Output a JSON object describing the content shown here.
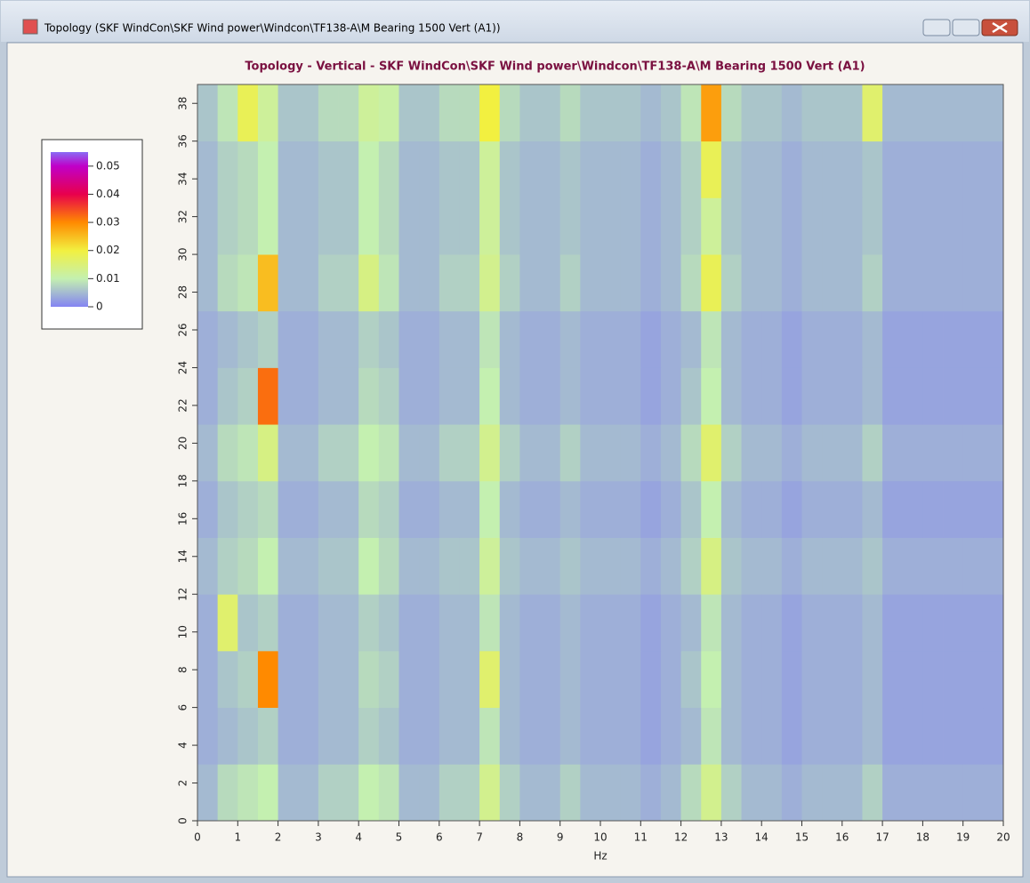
{
  "window": {
    "title": "Topology (SKF WindCon\\SKF Wind power\\Windcon\\TF138-A\\M Bearing 1500 Vert (A1))"
  },
  "chart_data": {
    "type": "heatmap",
    "title": "Topology - Vertical - SKF WindCon\\SKF Wind power\\Windcon\\TF138-A\\M Bearing 1500 Vert (A1)",
    "x_label": "Hz",
    "xlim": [
      0,
      20
    ],
    "ylim": [
      0,
      39
    ],
    "xticks": [
      0,
      1,
      2,
      3,
      4,
      5,
      6,
      7,
      8,
      9,
      10,
      11,
      12,
      13,
      14,
      15,
      16,
      17,
      18,
      19,
      20
    ],
    "yticks": [
      0,
      2,
      4,
      6,
      8,
      10,
      12,
      14,
      16,
      18,
      20,
      22,
      24,
      26,
      28,
      30,
      32,
      34,
      36,
      38
    ],
    "x": [
      0,
      0.5,
      1,
      1.5,
      2,
      2.5,
      3,
      3.5,
      4,
      4.5,
      5,
      5.5,
      6,
      6.5,
      7,
      7.5,
      8,
      8.5,
      9,
      9.5,
      10,
      10.5,
      11,
      11.5,
      12,
      12.5,
      13,
      13.5,
      14,
      14.5,
      15,
      15.5,
      16,
      16.5,
      17,
      17.5,
      18,
      18.5,
      19,
      19.5,
      20
    ],
    "y": [
      0,
      3,
      6,
      9,
      12,
      15,
      18,
      21,
      24,
      27,
      30,
      33,
      36,
      39
    ],
    "clim": [
      0,
      0.055
    ],
    "colorbar_ticks": [
      0,
      0.01,
      0.02,
      0.03,
      0.04,
      0.05
    ],
    "colorscale": [
      [
        0,
        "#8484f2"
      ],
      [
        0.01,
        "#c4f0b0"
      ],
      [
        0.02,
        "#f2f040"
      ],
      [
        0.03,
        "#ff8a00"
      ],
      [
        0.04,
        "#e8004c"
      ],
      [
        0.05,
        "#c000c8"
      ],
      [
        0.055,
        "#8a6cf4"
      ]
    ],
    "z": [
      [
        0.005,
        0.008,
        0.009,
        0.01,
        0.005,
        0.005,
        0.007,
        0.007,
        0.01,
        0.009,
        0.005,
        0.005,
        0.007,
        0.007,
        0.013,
        0.007,
        0.005,
        0.005,
        0.007,
        0.005,
        0.005,
        0.005,
        0.004,
        0.005,
        0.008,
        0.013,
        0.007,
        0.005,
        0.005,
        0.004,
        0.005,
        0.005,
        0.005,
        0.007,
        0.004,
        0.004,
        0.004,
        0.004,
        0.004,
        0.004
      ],
      [
        0.004,
        0.005,
        0.006,
        0.007,
        0.004,
        0.004,
        0.005,
        0.005,
        0.007,
        0.006,
        0.004,
        0.004,
        0.005,
        0.005,
        0.009,
        0.005,
        0.004,
        0.004,
        0.005,
        0.004,
        0.004,
        0.004,
        0.003,
        0.004,
        0.005,
        0.009,
        0.005,
        0.004,
        0.004,
        0.003,
        0.004,
        0.004,
        0.004,
        0.005,
        0.003,
        0.003,
        0.003,
        0.003,
        0.003,
        0.003
      ],
      [
        0.004,
        0.006,
        0.007,
        0.03,
        0.004,
        0.004,
        0.005,
        0.005,
        0.008,
        0.007,
        0.004,
        0.004,
        0.005,
        0.005,
        0.016,
        0.005,
        0.004,
        0.004,
        0.005,
        0.004,
        0.004,
        0.004,
        0.003,
        0.004,
        0.006,
        0.01,
        0.005,
        0.004,
        0.004,
        0.003,
        0.004,
        0.004,
        0.004,
        0.005,
        0.003,
        0.003,
        0.003,
        0.003,
        0.003,
        0.003
      ],
      [
        0.004,
        0.016,
        0.006,
        0.007,
        0.004,
        0.004,
        0.005,
        0.005,
        0.007,
        0.006,
        0.004,
        0.004,
        0.005,
        0.005,
        0.009,
        0.005,
        0.004,
        0.004,
        0.005,
        0.004,
        0.004,
        0.004,
        0.003,
        0.004,
        0.005,
        0.009,
        0.005,
        0.004,
        0.004,
        0.003,
        0.004,
        0.004,
        0.004,
        0.005,
        0.003,
        0.003,
        0.003,
        0.003,
        0.003,
        0.003
      ],
      [
        0.005,
        0.007,
        0.008,
        0.01,
        0.005,
        0.005,
        0.006,
        0.006,
        0.01,
        0.008,
        0.005,
        0.005,
        0.006,
        0.006,
        0.012,
        0.006,
        0.005,
        0.005,
        0.006,
        0.005,
        0.005,
        0.005,
        0.004,
        0.005,
        0.007,
        0.014,
        0.006,
        0.005,
        0.005,
        0.004,
        0.005,
        0.005,
        0.005,
        0.006,
        0.004,
        0.004,
        0.004,
        0.004,
        0.004,
        0.004
      ],
      [
        0.004,
        0.006,
        0.007,
        0.008,
        0.004,
        0.004,
        0.005,
        0.005,
        0.008,
        0.007,
        0.004,
        0.004,
        0.005,
        0.005,
        0.01,
        0.005,
        0.004,
        0.004,
        0.005,
        0.004,
        0.004,
        0.004,
        0.003,
        0.004,
        0.006,
        0.01,
        0.005,
        0.004,
        0.004,
        0.003,
        0.004,
        0.004,
        0.004,
        0.005,
        0.003,
        0.003,
        0.003,
        0.003,
        0.003,
        0.003
      ],
      [
        0.005,
        0.008,
        0.009,
        0.014,
        0.005,
        0.005,
        0.007,
        0.007,
        0.01,
        0.009,
        0.005,
        0.005,
        0.007,
        0.007,
        0.013,
        0.007,
        0.005,
        0.005,
        0.007,
        0.005,
        0.005,
        0.005,
        0.004,
        0.005,
        0.008,
        0.016,
        0.007,
        0.005,
        0.005,
        0.004,
        0.005,
        0.005,
        0.005,
        0.007,
        0.004,
        0.004,
        0.004,
        0.004,
        0.004,
        0.004
      ],
      [
        0.004,
        0.006,
        0.007,
        0.032,
        0.004,
        0.004,
        0.005,
        0.005,
        0.008,
        0.007,
        0.004,
        0.004,
        0.005,
        0.005,
        0.01,
        0.005,
        0.004,
        0.004,
        0.005,
        0.004,
        0.004,
        0.004,
        0.003,
        0.004,
        0.006,
        0.01,
        0.005,
        0.004,
        0.004,
        0.003,
        0.004,
        0.004,
        0.004,
        0.005,
        0.003,
        0.003,
        0.003,
        0.003,
        0.003,
        0.003
      ],
      [
        0.004,
        0.005,
        0.006,
        0.007,
        0.004,
        0.004,
        0.005,
        0.005,
        0.007,
        0.006,
        0.004,
        0.004,
        0.005,
        0.005,
        0.009,
        0.005,
        0.004,
        0.004,
        0.005,
        0.004,
        0.004,
        0.004,
        0.003,
        0.004,
        0.005,
        0.009,
        0.005,
        0.004,
        0.004,
        0.003,
        0.004,
        0.004,
        0.004,
        0.005,
        0.003,
        0.003,
        0.003,
        0.003,
        0.003,
        0.003
      ],
      [
        0.005,
        0.008,
        0.009,
        0.025,
        0.005,
        0.005,
        0.007,
        0.007,
        0.014,
        0.009,
        0.005,
        0.005,
        0.007,
        0.007,
        0.013,
        0.007,
        0.005,
        0.005,
        0.007,
        0.005,
        0.005,
        0.005,
        0.004,
        0.005,
        0.008,
        0.018,
        0.007,
        0.005,
        0.005,
        0.004,
        0.005,
        0.005,
        0.005,
        0.007,
        0.004,
        0.004,
        0.004,
        0.004,
        0.004,
        0.004
      ],
      [
        0.005,
        0.007,
        0.008,
        0.01,
        0.005,
        0.005,
        0.006,
        0.006,
        0.01,
        0.008,
        0.005,
        0.005,
        0.006,
        0.006,
        0.012,
        0.006,
        0.005,
        0.005,
        0.006,
        0.005,
        0.005,
        0.005,
        0.004,
        0.005,
        0.007,
        0.012,
        0.006,
        0.005,
        0.005,
        0.004,
        0.005,
        0.005,
        0.005,
        0.006,
        0.004,
        0.004,
        0.004,
        0.004,
        0.004,
        0.004
      ],
      [
        0.005,
        0.007,
        0.008,
        0.01,
        0.005,
        0.005,
        0.006,
        0.006,
        0.01,
        0.008,
        0.005,
        0.005,
        0.006,
        0.006,
        0.012,
        0.006,
        0.005,
        0.005,
        0.006,
        0.005,
        0.005,
        0.005,
        0.004,
        0.005,
        0.007,
        0.018,
        0.006,
        0.005,
        0.005,
        0.004,
        0.005,
        0.005,
        0.005,
        0.006,
        0.004,
        0.004,
        0.004,
        0.004,
        0.004,
        0.004
      ],
      [
        0.006,
        0.009,
        0.018,
        0.012,
        0.006,
        0.006,
        0.008,
        0.008,
        0.012,
        0.011,
        0.006,
        0.006,
        0.008,
        0.008,
        0.02,
        0.008,
        0.006,
        0.006,
        0.008,
        0.006,
        0.006,
        0.006,
        0.005,
        0.006,
        0.009,
        0.028,
        0.008,
        0.006,
        0.006,
        0.005,
        0.006,
        0.006,
        0.006,
        0.016,
        0.005,
        0.005,
        0.005,
        0.005,
        0.005,
        0.005
      ]
    ]
  }
}
